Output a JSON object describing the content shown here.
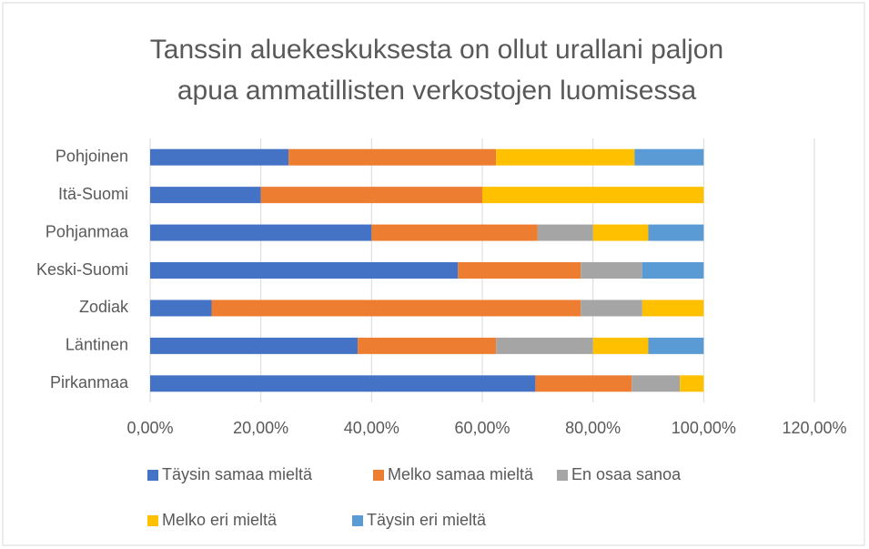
{
  "chart_data": {
    "type": "stacked_barh",
    "title": [
      "Tanssin aluekeskuksesta on ollut urallani paljon",
      "apua ammatillisten verkostojen luomisessa"
    ],
    "categories": [
      "Pohjoinen",
      "Itä-Suomi",
      "Pohjanmaa",
      "Keski-Suomi",
      "Zodiak",
      "Läntinen",
      "Pirkanmaa"
    ],
    "series": [
      {
        "name": "Täysin samaa mieltä",
        "color": "#4472c4",
        "values": [
          25,
          20,
          40,
          55.6,
          11.1,
          37.5,
          69.6
        ]
      },
      {
        "name": "Melko samaa mieltä",
        "color": "#ed7d31",
        "values": [
          37.5,
          40,
          30,
          22.2,
          66.7,
          25,
          17.4
        ]
      },
      {
        "name": "En osaa sanoa",
        "color": "#a5a5a5",
        "values": [
          0,
          0,
          10,
          11.1,
          11.1,
          17.5,
          8.7
        ]
      },
      {
        "name": "Melko eri mieltä",
        "color": "#ffc000",
        "values": [
          25,
          40,
          10,
          0,
          11.1,
          10,
          4.3
        ]
      },
      {
        "name": "Täysin eri mieltä",
        "color": "#5b9bd5",
        "values": [
          12.5,
          0,
          10,
          11.1,
          0,
          10,
          0
        ]
      }
    ],
    "xlim": [
      0,
      120
    ],
    "xticks": [
      {
        "value": 0,
        "label": "0,00%"
      },
      {
        "value": 20,
        "label": "20,00%"
      },
      {
        "value": 40,
        "label": "40,00%"
      },
      {
        "value": 60,
        "label": "60,00%"
      },
      {
        "value": 80,
        "label": "80,00%"
      },
      {
        "value": 100,
        "label": "100,00%"
      },
      {
        "value": 120,
        "label": "120,00%"
      }
    ],
    "grid": true,
    "legend": "bottom"
  }
}
